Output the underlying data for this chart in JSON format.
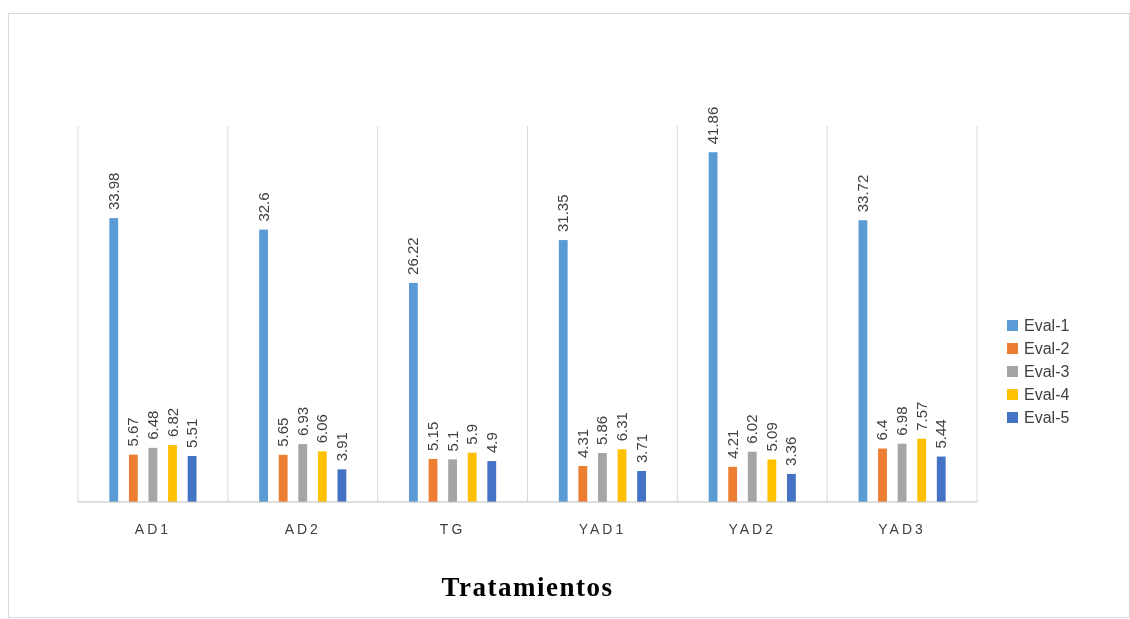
{
  "chart_data": {
    "type": "bar",
    "xlabel": "Tratamientos",
    "categories": [
      "AD1",
      "AD2",
      "TG",
      "YAD1",
      "YAD2",
      "YAD3"
    ],
    "series": [
      {
        "name": "Eval-1",
        "color": "#5b9bd5",
        "values": [
          33.98,
          32.6,
          26.22,
          31.35,
          41.86,
          33.72
        ]
      },
      {
        "name": "Eval-2",
        "color": "#ed7d31",
        "values": [
          5.67,
          5.65,
          5.15,
          4.31,
          4.21,
          6.4
        ]
      },
      {
        "name": "Eval-3",
        "color": "#a5a5a5",
        "values": [
          6.48,
          6.93,
          5.1,
          5.86,
          6.02,
          6.98
        ]
      },
      {
        "name": "Eval-4",
        "color": "#ffc000",
        "values": [
          6.82,
          6.06,
          5.9,
          6.31,
          5.09,
          7.57
        ]
      },
      {
        "name": "Eval-5",
        "color": "#4472c4",
        "values": [
          5.51,
          3.91,
          4.9,
          3.71,
          3.36,
          5.44
        ]
      }
    ],
    "ylim": [
      0,
      45
    ],
    "data_labels": true,
    "grid": "x",
    "legend": "right"
  }
}
